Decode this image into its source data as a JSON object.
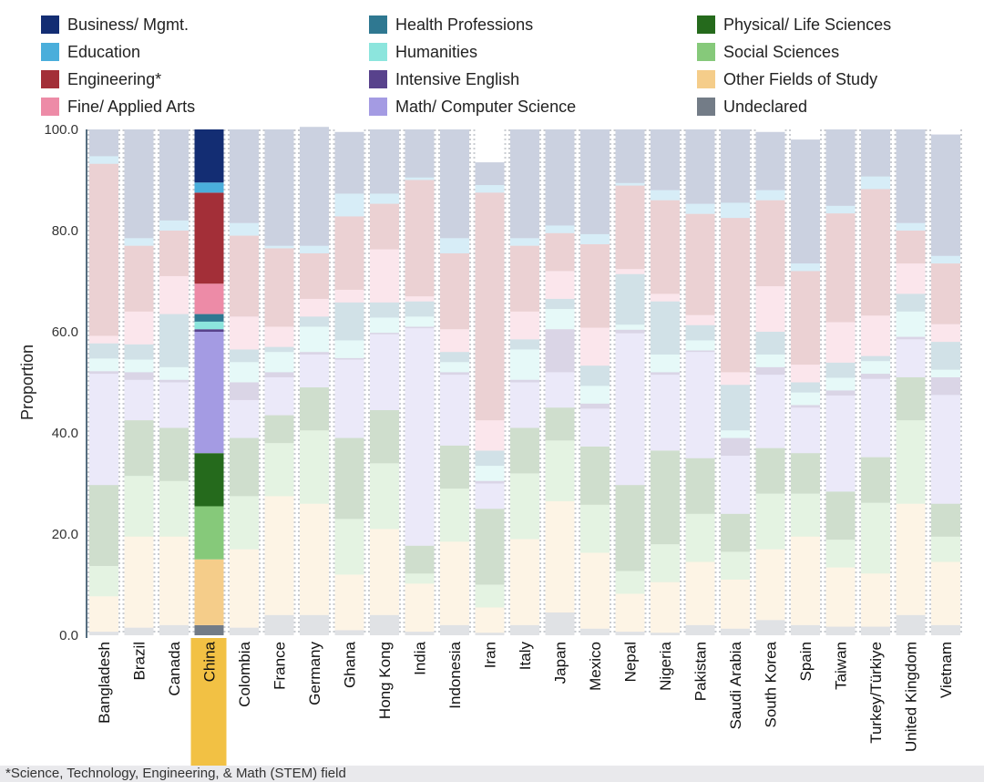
{
  "footnote": "*Science, Technology, Engineering, & Math (STEM) field",
  "highlight": "China",
  "chart_data": {
    "type": "bar",
    "stacked": true,
    "normalized": true,
    "ylabel": "Proportion",
    "ylim": [
      0,
      100
    ],
    "yticks": [
      "0.0",
      "20.0",
      "40.0",
      "60.0",
      "80.0",
      "100.0"
    ],
    "legend": [
      {
        "name": "Business/ Mgmt.",
        "color": "#132d73"
      },
      {
        "name": "Health Professions",
        "color": "#2f7891"
      },
      {
        "name": "Physical/ Life Sciences",
        "color": "#256a1c"
      },
      {
        "name": "Education",
        "color": "#4aaedb"
      },
      {
        "name": "Humanities",
        "color": "#8ce5dd"
      },
      {
        "name": "Social Sciences",
        "color": "#86c97a"
      },
      {
        "name": "Engineering*",
        "color": "#a32f38"
      },
      {
        "name": "Intensive English",
        "color": "#58428c"
      },
      {
        "name": "Other Fields of Study",
        "color": "#f5cd8a"
      },
      {
        "name": "Fine/ Applied Arts",
        "color": "#ed8ba7"
      },
      {
        "name": "Math/ Computer Science",
        "color": "#a49be3"
      },
      {
        "name": "Undeclared",
        "color": "#737c87"
      }
    ],
    "stack_order": [
      "Undeclared",
      "Other Fields of Study",
      "Social Sciences",
      "Physical/ Life Sciences",
      "Math/ Computer Science",
      "Intensive English",
      "Humanities",
      "Health Professions",
      "Fine/ Applied Arts",
      "Engineering*",
      "Education",
      "Business/ Mgmt."
    ],
    "categories": [
      "Bangladesh",
      "Brazil",
      "Canada",
      "China",
      "Colombia",
      "France",
      "Germany",
      "Ghana",
      "Hong Kong",
      "India",
      "Indonesia",
      "Iran",
      "Italy",
      "Japan",
      "Mexico",
      "Nepal",
      "Nigeria",
      "Pakistan",
      "Saudi Arabia",
      "South Korea",
      "Spain",
      "Taiwan",
      "Turkey/Türkiye",
      "United Kingdom",
      "Vietnam"
    ],
    "series": [
      {
        "name": "Undeclared",
        "values": [
          0.7,
          1.5,
          2.0,
          2.0,
          1.5,
          4.0,
          4.0,
          1.0,
          4.0,
          0.7,
          2.0,
          0.5,
          2.0,
          4.5,
          1.3,
          0.7,
          0.5,
          2.0,
          1.3,
          3.0,
          2.0,
          1.7,
          1.7,
          4.0,
          2.0
        ]
      },
      {
        "name": "Other Fields of Study",
        "values": [
          7.0,
          18.0,
          17.5,
          13.0,
          15.5,
          23.5,
          22.0,
          11.0,
          17.0,
          9.5,
          16.5,
          5.0,
          17.0,
          22.0,
          15.0,
          7.5,
          10.0,
          12.5,
          9.7,
          14.0,
          17.5,
          11.7,
          10.5,
          22.0,
          12.5
        ]
      },
      {
        "name": "Social Sciences",
        "values": [
          6.0,
          12.0,
          11.0,
          10.5,
          10.5,
          10.5,
          14.5,
          11.0,
          13.0,
          2.0,
          10.5,
          4.5,
          13.0,
          12.0,
          9.5,
          4.5,
          7.5,
          9.5,
          5.5,
          11.0,
          8.5,
          5.5,
          14.0,
          16.5,
          5.0
        ]
      },
      {
        "name": "Physical/ Life Sciences",
        "values": [
          16.0,
          11.0,
          10.5,
          10.5,
          11.5,
          5.5,
          8.5,
          16.0,
          10.5,
          5.5,
          8.5,
          15.0,
          9.0,
          6.5,
          11.5,
          17.0,
          18.5,
          11.0,
          7.5,
          9.0,
          8.0,
          9.5,
          9.0,
          8.5,
          6.5
        ]
      },
      {
        "name": "Math/ Computer Science",
        "values": [
          22.0,
          8.0,
          9.0,
          24.0,
          7.5,
          7.5,
          6.5,
          15.5,
          15.0,
          43.0,
          14.0,
          5.0,
          9.0,
          7.0,
          7.5,
          30.0,
          15.0,
          21.0,
          11.5,
          14.5,
          9.0,
          19.0,
          15.5,
          7.5,
          21.5
        ]
      },
      {
        "name": "Intensive English",
        "values": [
          0.5,
          1.5,
          0.5,
          0.5,
          3.5,
          1.0,
          0.5,
          0.3,
          0.3,
          0.3,
          0.5,
          0.5,
          0.5,
          8.5,
          1.0,
          0.7,
          0.5,
          0.3,
          3.5,
          1.5,
          0.5,
          1.0,
          1.0,
          0.5,
          3.5
        ]
      },
      {
        "name": "Humanities",
        "values": [
          2.5,
          2.5,
          2.5,
          1.5,
          4.0,
          4.0,
          5.0,
          3.5,
          3.0,
          2.0,
          2.0,
          3.0,
          6.0,
          4.0,
          3.5,
          1.0,
          3.5,
          2.0,
          1.5,
          2.5,
          2.5,
          2.5,
          2.5,
          5.0,
          1.5
        ]
      },
      {
        "name": "Health Professions",
        "values": [
          3.0,
          3.0,
          10.5,
          1.5,
          2.5,
          1.0,
          2.0,
          7.5,
          3.0,
          3.0,
          2.0,
          3.0,
          2.0,
          2.0,
          4.0,
          10.0,
          10.5,
          3.0,
          9.0,
          4.5,
          2.0,
          3.0,
          1.0,
          3.5,
          5.5
        ]
      },
      {
        "name": "Fine/ Applied Arts",
        "values": [
          1.5,
          6.5,
          7.5,
          6.0,
          6.5,
          4.0,
          3.5,
          2.5,
          10.5,
          1.0,
          4.5,
          6.0,
          5.5,
          5.5,
          7.5,
          1.0,
          1.5,
          2.0,
          2.5,
          9.0,
          3.5,
          8.0,
          8.0,
          6.0,
          3.5
        ]
      },
      {
        "name": "Engineering*",
        "values": [
          34.0,
          13.0,
          9.0,
          18.0,
          16.0,
          15.5,
          9.0,
          14.5,
          9.0,
          23.0,
          15.0,
          45.0,
          13.0,
          7.5,
          16.5,
          16.5,
          18.5,
          20.0,
          30.5,
          17.0,
          18.5,
          21.5,
          25.0,
          6.5,
          12.0
        ]
      },
      {
        "name": "Education",
        "values": [
          1.5,
          1.5,
          2.0,
          2.0,
          2.5,
          0.5,
          1.5,
          4.5,
          2.0,
          0.5,
          3.0,
          1.5,
          1.5,
          1.5,
          2.0,
          0.5,
          2.0,
          2.0,
          3.0,
          2.0,
          1.5,
          1.5,
          2.5,
          1.5,
          1.5
        ]
      },
      {
        "name": "Business/ Mgmt.",
        "values": [
          5.3,
          21.5,
          18.0,
          10.5,
          18.5,
          23.0,
          23.5,
          12.2,
          12.7,
          9.5,
          21.5,
          4.5,
          21.5,
          19.0,
          20.7,
          10.6,
          12.0,
          14.7,
          14.5,
          11.5,
          24.5,
          15.1,
          9.3,
          18.5,
          24.0
        ]
      }
    ]
  }
}
